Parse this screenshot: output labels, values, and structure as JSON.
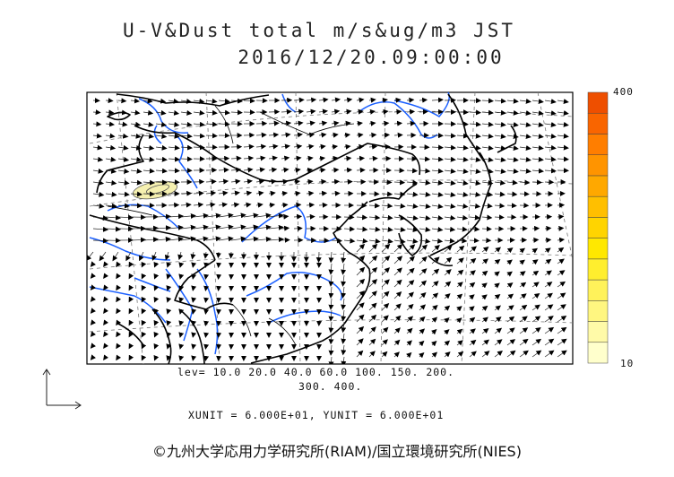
{
  "title": {
    "line1": "U-V&Dust total m/s&ug/m3 JST",
    "line2": "2016/12/20.09:00:00"
  },
  "legend": {
    "levels_line1": "lev= 10.0 20.0 40.0 60.0 100. 150. 200.",
    "levels_line2": "300. 400.",
    "colorbar_max": "400",
    "colorbar_min": "10",
    "colors": [
      "#ffffcc",
      "#fffaa8",
      "#fff680",
      "#fff25a",
      "#ffee2e",
      "#ffe800",
      "#ffd400",
      "#ffbf00",
      "#ffa800",
      "#ff9400",
      "#ff7e00",
      "#f96500",
      "#ee4f00"
    ]
  },
  "units": "XUNIT = 6.000E+01, YUNIT = 6.000E+01",
  "credit": "©九州大学応用力学研究所(RIAM)/国立環境研究所(NIES)",
  "colors": {
    "coast": "#000000",
    "river": "#1a5fff",
    "grid": "#777777",
    "dust": "#f5f0b0"
  }
}
